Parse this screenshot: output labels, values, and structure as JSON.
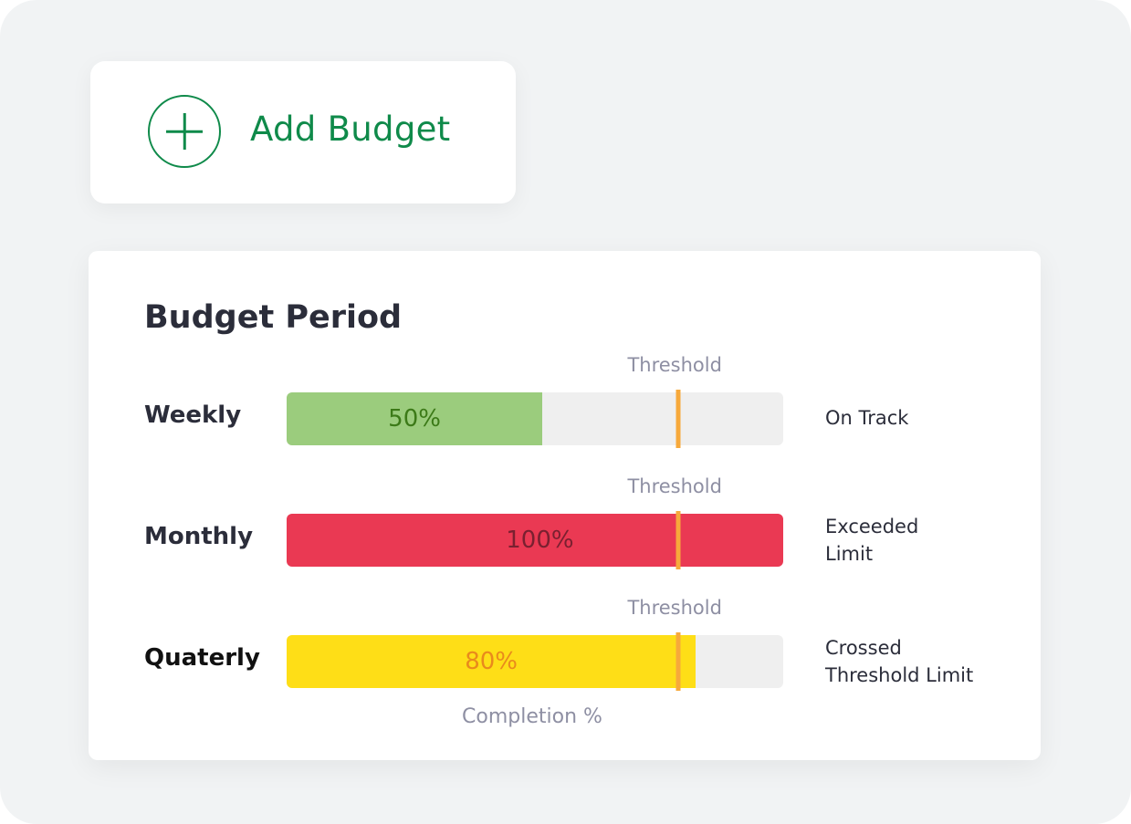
{
  "add_button": {
    "label": "Add Budget",
    "icon": "plus-circle-icon",
    "color": "#0f8a4a"
  },
  "chart_data": {
    "type": "bar",
    "orientation": "horizontal",
    "title": "Budget Period",
    "xlabel": "Completion %",
    "xlim": [
      0,
      100
    ],
    "threshold": 80,
    "threshold_label": "Threshold",
    "threshold_color": "#f7a93b",
    "categories": [
      "Weekly",
      "Monthly",
      "Quaterly"
    ],
    "values": [
      50,
      100,
      80
    ],
    "value_labels": [
      "50%",
      "100%",
      "80%"
    ],
    "bar_colors": [
      "#9bcc7d",
      "#ea3953",
      "#fede17"
    ],
    "label_colors": [
      "#3c7a18",
      "#7a2030",
      "#e98a1c"
    ],
    "statuses": [
      "On Track",
      "Exceeded\nLimit",
      "Crossed\nThreshold Limit"
    ]
  }
}
